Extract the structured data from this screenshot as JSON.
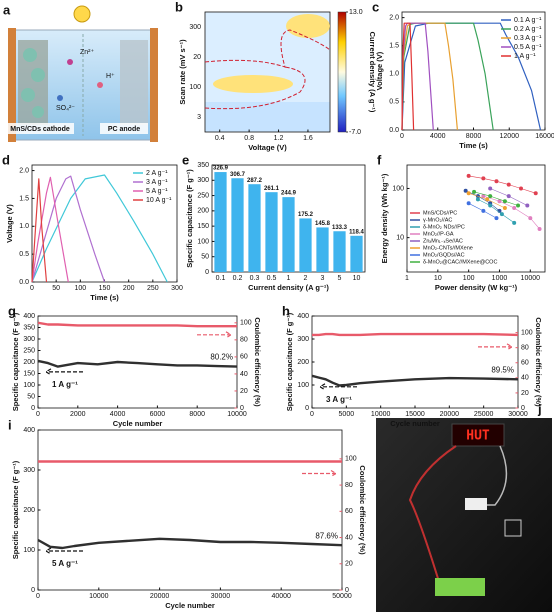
{
  "chart_data": [
    {
      "type": "heatmap",
      "label": "b",
      "xlabel": "Voltage (V)",
      "ylabel": "Scan rate (mV s⁻¹)",
      "clabel": "Current density (A g⁻¹)",
      "xlim": [
        0.2,
        1.9
      ],
      "xticks": [
        0.4,
        0.8,
        1.2,
        1.6
      ],
      "ycategories": [
        "300",
        "20",
        "100",
        "3"
      ],
      "clim": [
        -7,
        13
      ],
      "cticks": [
        {
          "value": 13,
          "label": "13.0"
        },
        {
          "value": -7,
          "label": "-7.0"
        }
      ]
    },
    {
      "type": "line",
      "label": "c",
      "xlabel": "Time (s)",
      "ylabel": "Voltage (V)",
      "legend": "upper right",
      "xlim": [
        0,
        16000
      ],
      "xticks": [
        0,
        4000,
        8000,
        12000,
        16000
      ],
      "ylim": [
        0,
        2.1
      ],
      "yticks": [
        {
          "value": 0,
          "label": "0.0"
        },
        {
          "value": 0.5,
          "label": "0.5"
        },
        {
          "value": 1,
          "label": "1.0"
        },
        {
          "value": 1.5,
          "label": "1.5"
        },
        {
          "value": 2,
          "label": "2.0"
        }
      ],
      "series": [
        {
          "name": "0.1 A g⁻¹",
          "color": "#3060c0",
          "x": [
            0,
            300,
            1500,
            3000,
            11000,
            11600,
            13000,
            14500,
            15500
          ],
          "values": [
            0,
            1.2,
            1.85,
            1.9,
            1.9,
            1.7,
            1.3,
            0.7,
            0
          ]
        },
        {
          "name": "0.2 A g⁻¹",
          "color": "#3aa35a",
          "x": [
            0,
            200,
            900,
            1500,
            8000,
            8500,
            9300,
            10200
          ],
          "values": [
            0,
            1.3,
            1.88,
            1.9,
            1.9,
            1.6,
            1.0,
            0
          ]
        },
        {
          "name": "0.3 A g⁻¹",
          "color": "#e8a030",
          "x": [
            0,
            150,
            600,
            1000,
            4800,
            5200,
            5700,
            6200
          ],
          "values": [
            0,
            1.3,
            1.85,
            1.9,
            1.9,
            1.5,
            0.9,
            0
          ]
        },
        {
          "name": "0.5 A g⁻¹",
          "color": "#a050c0",
          "x": [
            0,
            100,
            400,
            600,
            2600,
            2900,
            3200,
            3500
          ],
          "values": [
            0,
            1.3,
            1.85,
            1.9,
            1.9,
            1.4,
            0.7,
            0
          ]
        },
        {
          "name": "1 A g⁻¹",
          "color": "#e03030",
          "x": [
            0,
            100,
            250,
            900,
            1100,
            1300
          ],
          "values": [
            0,
            1.4,
            1.9,
            1.9,
            1.0,
            0
          ]
        }
      ]
    },
    {
      "type": "line",
      "label": "d",
      "xlabel": "Time (s)",
      "ylabel": "Voltage (V)",
      "legend": "upper right",
      "xlim": [
        0,
        300
      ],
      "xticks": [
        0,
        50,
        100,
        150,
        200,
        250,
        300
      ],
      "ylim": [
        0,
        2.1
      ],
      "yticks": [
        {
          "value": 0,
          "label": "0.0"
        },
        {
          "value": 0.5,
          "label": "0.5"
        },
        {
          "value": 1,
          "label": "1.0"
        },
        {
          "value": 1.5,
          "label": "1.5"
        },
        {
          "value": 2,
          "label": "2.0"
        }
      ],
      "series": [
        {
          "name": "2 A g⁻¹",
          "color": "#40c8d8",
          "x": [
            0,
            30,
            80,
            110,
            150,
            175,
            210,
            250,
            280
          ],
          "values": [
            0,
            0.6,
            1.5,
            1.85,
            1.92,
            1.6,
            1.1,
            0.5,
            0
          ]
        },
        {
          "name": "3 A g⁻¹",
          "color": "#b070d0",
          "x": [
            0,
            20,
            50,
            70,
            80,
            100,
            130,
            150
          ],
          "values": [
            0,
            0.6,
            1.5,
            1.85,
            1.9,
            1.3,
            0.5,
            0
          ]
        },
        {
          "name": "5 A g⁻¹",
          "color": "#e060b0",
          "x": [
            0,
            12,
            30,
            38,
            55,
            75
          ],
          "values": [
            0,
            0.7,
            1.6,
            1.88,
            1.0,
            0
          ]
        },
        {
          "name": "10 A g⁻¹",
          "color": "#e04040",
          "x": [
            0,
            6,
            14,
            20,
            30
          ],
          "values": [
            0,
            0.8,
            1.85,
            1.0,
            0
          ]
        }
      ]
    },
    {
      "type": "bar",
      "label": "e",
      "xlabel": "Current density (A g⁻¹)",
      "ylabel": "Specific capacitance (F g⁻¹)",
      "color": "#3fb4ee",
      "categories": [
        "0.1",
        "0.2",
        "0.3",
        "0.5",
        "1",
        "2",
        "3",
        "5",
        "10"
      ],
      "values": [
        326.9,
        306.7,
        287.2,
        261.1,
        244.9,
        175.2,
        145.8,
        133.3,
        118.4
      ],
      "ylim": [
        0,
        350
      ],
      "yticks": [
        0,
        50,
        100,
        150,
        200,
        250,
        300,
        350
      ]
    },
    {
      "type": "scatter",
      "label": "f",
      "xlabel": "Power density (W kg⁻¹)",
      "ylabel": "Energy density (Wh kg⁻¹)",
      "legend": "lower left",
      "xlog": true,
      "ylog": true,
      "xlim": [
        1,
        30000
      ],
      "xticks": [
        1,
        10,
        100,
        1000,
        10000
      ],
      "ylim": [
        2,
        300
      ],
      "yticks": [
        10,
        100
      ],
      "series": [
        {
          "name": "MnS/CDs//PC",
          "color": "#e04050",
          "x": [
            100,
            300,
            800,
            2000,
            5000,
            15000
          ],
          "values": [
            180,
            160,
            140,
            120,
            100,
            80
          ]
        },
        {
          "name": "γ-MnO₂//AC",
          "color": "#3050a0",
          "x": [
            80,
            200,
            500,
            1000
          ],
          "values": [
            90,
            70,
            50,
            35
          ]
        },
        {
          "name": "δ-MnO₂ NDs//PC",
          "color": "#30a0b0",
          "x": [
            200,
            500,
            1200,
            3000
          ],
          "values": [
            60,
            45,
            30,
            20
          ]
        },
        {
          "name": "MnO₂//P-GA",
          "color": "#e080c0",
          "x": [
            300,
            1000,
            3000,
            10000,
            20000
          ],
          "values": [
            70,
            55,
            40,
            25,
            15
          ]
        },
        {
          "name": "ZnₓMn₁₋ₓSe//AC",
          "color": "#9060c0",
          "x": [
            500,
            2000,
            8000
          ],
          "values": [
            100,
            70,
            45
          ]
        },
        {
          "name": "MnO₂-CNTs//MXene",
          "color": "#f0a030",
          "x": [
            100,
            400,
            1500
          ],
          "values": [
            80,
            60,
            40
          ]
        },
        {
          "name": "MnO₂/GQDs//AC",
          "color": "#4070e0",
          "x": [
            100,
            300,
            800
          ],
          "values": [
            50,
            35,
            25
          ]
        },
        {
          "name": "δ-MnO₂@CAC//MXene@COC",
          "color": "#40b040",
          "x": [
            150,
            500,
            1500,
            4000
          ],
          "values": [
            85,
            70,
            55,
            45
          ]
        }
      ]
    },
    {
      "type": "line",
      "label": "g",
      "xlabel": "Cycle number",
      "ylabel": "Specific capacitance (F g⁻¹)",
      "y2label": "Coulombic efficiency (%)",
      "annotations": [
        "80.2%",
        "1 A g⁻¹"
      ],
      "xlim": [
        0,
        10000
      ],
      "xticks": [
        0,
        2000,
        4000,
        6000,
        8000,
        10000
      ],
      "ylim": [
        0,
        400
      ],
      "yticks": [
        0,
        50,
        100,
        150,
        200,
        250,
        300,
        350,
        400
      ],
      "y2lim": [
        0,
        108
      ],
      "y2ticks": [
        0,
        20,
        40,
        60,
        80,
        100
      ],
      "series": [
        {
          "color": "#303030",
          "x": [
            0,
            500,
            1000,
            2000,
            3000,
            4000,
            5000,
            6000,
            7000,
            8000,
            9000,
            10000
          ],
          "values": [
            205,
            195,
            180,
            195,
            190,
            200,
            195,
            190,
            185,
            185,
            182,
            180
          ]
        },
        {
          "color": "#e85a6a",
          "axis": "y2",
          "x": [
            0,
            500,
            1000,
            2000,
            3000,
            4000,
            5000,
            6000,
            7000,
            8000,
            9000,
            10000
          ],
          "values": [
            100,
            98,
            98,
            97,
            97,
            97,
            97,
            97,
            97,
            96,
            96,
            96
          ]
        }
      ]
    },
    {
      "type": "line",
      "label": "h",
      "xlabel": "Cycle number",
      "ylabel": "Specific capacitance (F g⁻¹)",
      "y2label": "Coulombic efficiency (%)",
      "annotations": [
        "89.5%",
        "3 A g⁻¹"
      ],
      "xlim": [
        0,
        30000
      ],
      "xticks": [
        0,
        5000,
        10000,
        15000,
        20000,
        25000,
        30000
      ],
      "ylim": [
        0,
        400
      ],
      "yticks": [
        0,
        100,
        200,
        300,
        400
      ],
      "y2lim": [
        0,
        122
      ],
      "y2ticks": [
        0,
        20,
        40,
        60,
        80,
        100
      ],
      "series": [
        {
          "color": "#303030",
          "x": [
            0,
            1000,
            2000,
            3000,
            4000,
            5000,
            7000,
            10000,
            15000,
            20000,
            25000,
            30000
          ],
          "values": [
            140,
            132,
            125,
            110,
            98,
            100,
            108,
            115,
            125,
            130,
            128,
            125
          ]
        },
        {
          "color": "#e85a6a",
          "axis": "y2",
          "x": [
            0,
            1000,
            2000,
            3000,
            4000,
            5000,
            7000,
            10000,
            15000,
            20000,
            25000,
            30000
          ],
          "values": [
            97,
            97,
            98,
            98,
            97,
            97,
            97,
            98,
            98,
            98,
            98,
            97
          ]
        }
      ]
    },
    {
      "type": "line",
      "label": "i",
      "xlabel": "Cycle number",
      "ylabel": "Specific capacitance (F g⁻¹)",
      "y2label": "Coulombic efficiency (%)",
      "annotations": [
        "87.6%",
        "5 A g⁻¹"
      ],
      "xlim": [
        0,
        50000
      ],
      "xticks": [
        0,
        10000,
        20000,
        30000,
        40000,
        50000
      ],
      "ylim": [
        0,
        400
      ],
      "yticks": [
        0,
        100,
        200,
        300,
        400
      ],
      "y2lim": [
        0,
        122
      ],
      "y2ticks": [
        0,
        20,
        40,
        60,
        80,
        100
      ],
      "series": [
        {
          "color": "#303030",
          "x": [
            0,
            2000,
            4000,
            6000,
            10000,
            15000,
            20000,
            25000,
            30000,
            35000,
            40000,
            45000,
            50000
          ],
          "values": [
            125,
            108,
            105,
            110,
            118,
            123,
            128,
            125,
            120,
            120,
            118,
            115,
            112
          ]
        },
        {
          "color": "#e85a6a",
          "axis": "y2",
          "x": [
            0,
            2000,
            4000,
            6000,
            10000,
            15000,
            20000,
            25000,
            30000,
            35000,
            40000,
            45000,
            50000
          ],
          "values": [
            98,
            98,
            98,
            98,
            98,
            98,
            98,
            98,
            98,
            98,
            98,
            98,
            98
          ]
        }
      ]
    }
  ],
  "panel_a": {
    "label": "a",
    "texts": [
      "Zn²⁺",
      "H⁺",
      "SO₄²⁻",
      "MnS/CDs cathode",
      "PC anode"
    ]
  },
  "panel_j": {
    "label": "j",
    "display": "HUT"
  }
}
